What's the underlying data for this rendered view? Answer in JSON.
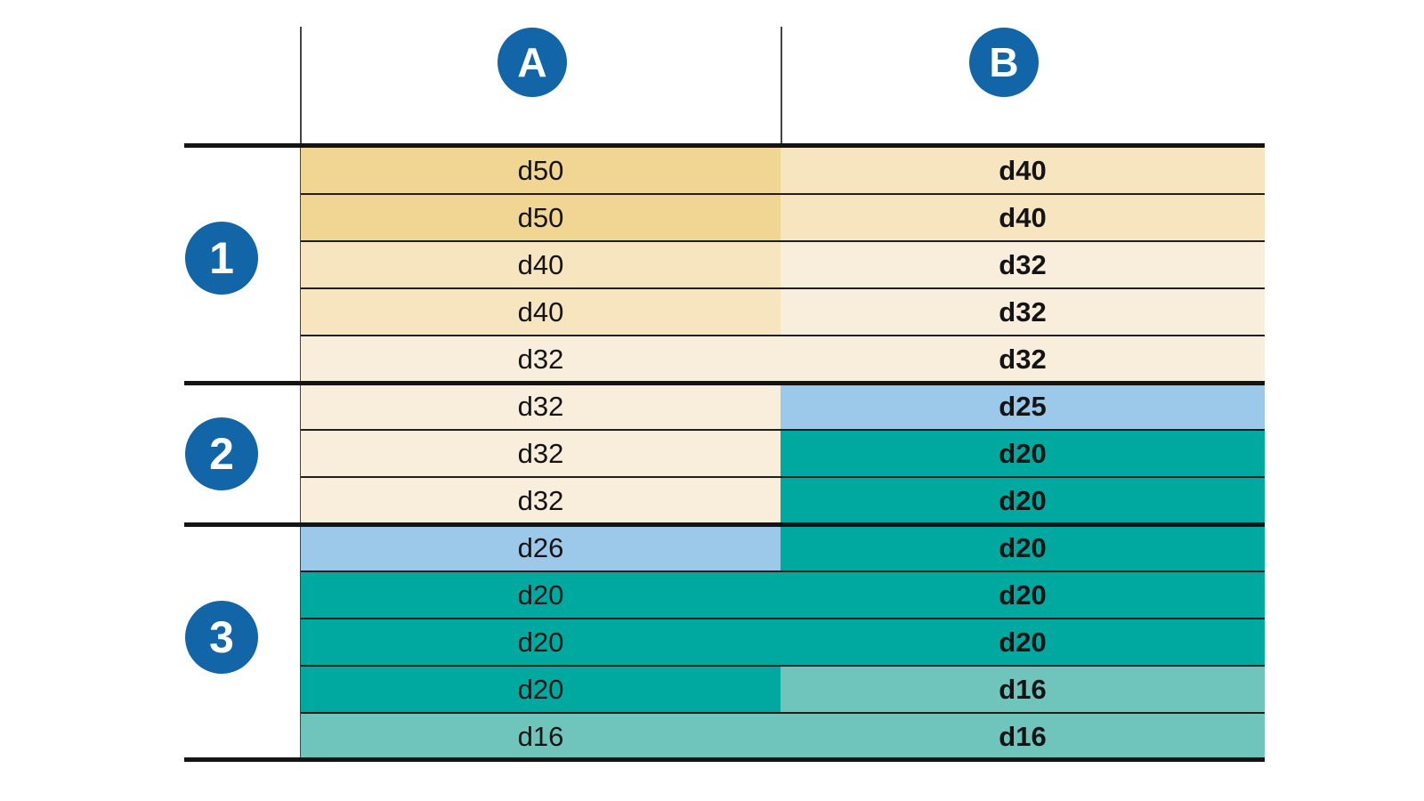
{
  "palette": {
    "badge_blue": "#1265A7",
    "sand": "#F1D593",
    "cream": "#F7E5C0",
    "cream_light": "#F9EEDC",
    "blue": "#9CC9EA",
    "teal": "#00A9A0",
    "teal_light": "#6FC4BC",
    "line_dark": "#141414",
    "rule_gray": "#444444"
  },
  "columns": [
    {
      "id": "A",
      "label": "A"
    },
    {
      "id": "B",
      "label": "B"
    }
  ],
  "groups": [
    {
      "label": "1",
      "rows": [
        {
          "a": {
            "text": "d50",
            "color": "sand"
          },
          "b": {
            "text": "d40",
            "color": "cream"
          }
        },
        {
          "a": {
            "text": "d50",
            "color": "sand"
          },
          "b": {
            "text": "d40",
            "color": "cream"
          }
        },
        {
          "a": {
            "text": "d40",
            "color": "cream"
          },
          "b": {
            "text": "d32",
            "color": "cream_light"
          }
        },
        {
          "a": {
            "text": "d40",
            "color": "cream"
          },
          "b": {
            "text": "d32",
            "color": "cream_light"
          }
        },
        {
          "a": {
            "text": "d32",
            "color": "cream_light"
          },
          "b": {
            "text": "d32",
            "color": "cream_light"
          }
        }
      ]
    },
    {
      "label": "2",
      "rows": [
        {
          "a": {
            "text": "d32",
            "color": "cream_light"
          },
          "b": {
            "text": "d25",
            "color": "blue"
          }
        },
        {
          "a": {
            "text": "d32",
            "color": "cream_light"
          },
          "b": {
            "text": "d20",
            "color": "teal"
          }
        },
        {
          "a": {
            "text": "d32",
            "color": "cream_light"
          },
          "b": {
            "text": "d20",
            "color": "teal"
          }
        }
      ]
    },
    {
      "label": "3",
      "rows": [
        {
          "a": {
            "text": "d26",
            "color": "blue"
          },
          "b": {
            "text": "d20",
            "color": "teal"
          }
        },
        {
          "a": {
            "text": "d20",
            "color": "teal"
          },
          "b": {
            "text": "d20",
            "color": "teal"
          }
        },
        {
          "a": {
            "text": "d20",
            "color": "teal"
          },
          "b": {
            "text": "d20",
            "color": "teal"
          }
        },
        {
          "a": {
            "text": "d20",
            "color": "teal"
          },
          "b": {
            "text": "d16",
            "color": "teal_light"
          }
        },
        {
          "a": {
            "text": "d16",
            "color": "teal_light"
          },
          "b": {
            "text": "d16",
            "color": "teal_light"
          }
        }
      ]
    }
  ]
}
